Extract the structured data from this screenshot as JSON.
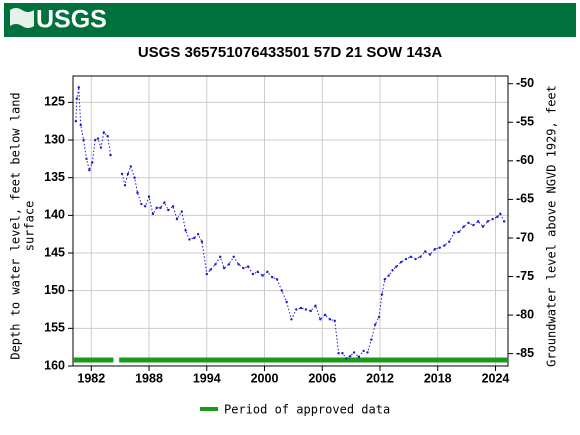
{
  "header": {
    "logo_text": "USGS"
  },
  "chart_data": {
    "type": "line",
    "title": "USGS 365751076433501 57D 21 SOW 143A",
    "y_label": [
      "Depth to water level, feet below land",
      "surface"
    ],
    "y2_label": "Groundwater level above NGVD 1929, feet",
    "color": "#1a1acc",
    "x": [
      1980.4,
      1980.5,
      1980.7,
      1980.9,
      1981.2,
      1981.5,
      1981.8,
      1982.1,
      1982.4,
      1982.7,
      1983.0,
      1983.3,
      1983.7,
      1984.0,
      1984.6,
      1985.2,
      1985.5,
      1985.8,
      1986.1,
      1986.5,
      1986.8,
      1987.2,
      1987.6,
      1988.0,
      1988.4,
      1988.8,
      1989.2,
      1989.6,
      1990.0,
      1990.5,
      1990.9,
      1991.4,
      1991.8,
      1992.2,
      1992.7,
      1993.1,
      1993.5,
      1994.0,
      1994.4,
      1994.9,
      1995.4,
      1995.8,
      1996.3,
      1996.8,
      1997.3,
      1997.8,
      1998.3,
      1998.8,
      1999.3,
      1999.8,
      2000.3,
      2000.8,
      2001.3,
      2001.8,
      2002.3,
      2002.8,
      2003.3,
      2003.8,
      2004.3,
      2004.8,
      2005.3,
      2005.8,
      2006.3,
      2006.8,
      2007.3,
      2007.7,
      2008.1,
      2008.5,
      2008.9,
      2009.3,
      2009.8,
      2010.3,
      2010.7,
      2011.1,
      2011.5,
      2011.9,
      2012.2,
      2012.5,
      2012.9,
      2013.3,
      2013.7,
      2014.2,
      2014.7,
      2015.2,
      2015.7,
      2016.2,
      2016.7,
      2017.2,
      2017.7,
      2018.2,
      2018.7,
      2019.2,
      2019.7,
      2020.2,
      2020.7,
      2021.2,
      2021.7,
      2022.2,
      2022.7,
      2023.2,
      2023.7,
      2024.2,
      2024.5,
      2024.9
    ],
    "values": [
      127.5,
      124.5,
      123,
      128,
      130,
      132.5,
      134,
      133,
      130,
      129.8,
      131,
      129,
      129.5,
      132,
      null,
      134.5,
      136,
      134.5,
      133.5,
      135,
      137,
      138.5,
      138.8,
      137.5,
      139.8,
      139,
      139,
      138.3,
      139.3,
      138.8,
      140.5,
      139.5,
      142,
      143.2,
      143,
      142.5,
      143.5,
      147.8,
      147.2,
      146.5,
      145.5,
      147,
      146.5,
      145.5,
      146.5,
      147,
      146.8,
      147.8,
      147.5,
      148,
      147.5,
      148.2,
      148.5,
      150,
      151.5,
      153.8,
      152.5,
      152.3,
      152.5,
      152.7,
      152,
      153.8,
      153.2,
      153.8,
      154,
      158.3,
      158.3,
      159,
      158.7,
      158.2,
      158.8,
      158,
      158.2,
      156.5,
      154.5,
      153.5,
      150.5,
      148.5,
      148,
      147.3,
      146.8,
      146.2,
      145.8,
      145.5,
      145.8,
      145.5,
      144.8,
      145.2,
      144.5,
      144.3,
      144,
      143.5,
      142.3,
      142.2,
      141.5,
      141,
      141.3,
      140.8,
      141.5,
      140.8,
      140.5,
      140.2,
      139.8,
      140.8
    ],
    "xlim": [
      1980.1,
      2025.3
    ],
    "xticks": [
      1982,
      1988,
      1994,
      2000,
      2006,
      2012,
      2018,
      2024
    ],
    "ylim": [
      160,
      121.5
    ],
    "yticks": [
      125,
      130,
      135,
      140,
      145,
      150,
      155,
      160
    ],
    "y2lim": [
      -86.6,
      -49.0
    ],
    "y2ticks": [
      -50,
      -55,
      -60,
      -65,
      -70,
      -75,
      -80,
      -85
    ],
    "grid": true,
    "approved": {
      "name": "Period of approved data",
      "color": "#1a9a1a",
      "periods": [
        [
          1980.1,
          1984.3
        ],
        [
          1984.9,
          2025.3
        ]
      ]
    }
  }
}
